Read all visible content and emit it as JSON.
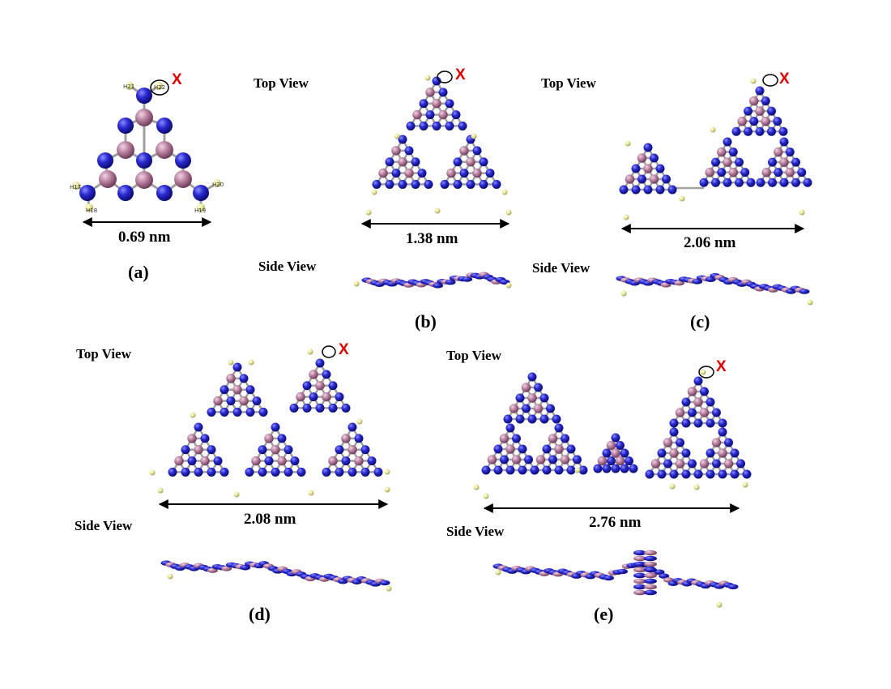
{
  "figure": {
    "panel_a": {
      "label": "(a)",
      "size": "0.69 nm",
      "marker": "X",
      "hydrogens": [
        "H21",
        "H22",
        "H17",
        "H18",
        "H19",
        "H20"
      ]
    },
    "panel_b": {
      "label": "(b)",
      "size": "1.38 nm",
      "marker": "X",
      "top_view": "Top View",
      "side_view": "Side View"
    },
    "panel_c": {
      "label": "(c)",
      "size": "2.06 nm",
      "marker": "X",
      "top_view": "Top View",
      "side_view": "Side View"
    },
    "panel_d": {
      "label": "(d)",
      "size": "2.08 nm",
      "marker": "X",
      "top_view": "Top View",
      "side_view": "Side View"
    },
    "panel_e": {
      "label": "(e)",
      "size": "2.76 nm",
      "marker": "X",
      "top_view": "Top View",
      "side_view": "Side View"
    },
    "atom_colors": {
      "nitrogen": "#1a1aa8",
      "boron": "#b07898",
      "hydrogen": "#e8e89a",
      "bond": "#a0a0a0"
    }
  }
}
